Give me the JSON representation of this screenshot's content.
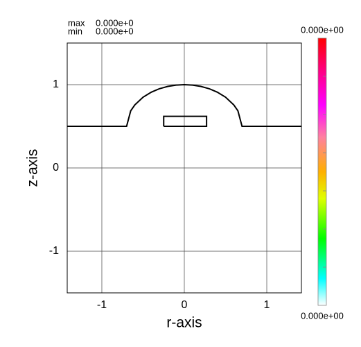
{
  "chart_data": {
    "type": "line",
    "x_label": "r-axis",
    "y_label": "z-axis",
    "annotations": {
      "max_label": "max",
      "max_value": "0.000e+0",
      "min_label": "min",
      "min_value": "0.000e+0"
    },
    "colorbar": {
      "top_label": "0.000e+00",
      "bottom_label": "0.000e+00"
    },
    "xlim": [
      -1.42,
      1.42
    ],
    "ylim": [
      -1.5,
      1.5
    ],
    "xticks": [
      -1,
      0,
      1
    ],
    "yticks": [
      -1,
      0,
      1
    ],
    "grid": true,
    "series": [
      {
        "color": "#000000",
        "x": [
          -1.42,
          -0.7,
          -0.65,
          -0.6,
          -0.5,
          -0.4,
          -0.3,
          -0.2,
          -0.1,
          0,
          0.1,
          0.2,
          0.3,
          0.4,
          0.5,
          0.6,
          0.65,
          0.7,
          1.42
        ],
        "values": [
          0.5,
          0.5,
          0.686,
          0.757,
          0.85,
          0.91,
          0.952,
          0.979,
          0.995,
          1.0,
          0.995,
          0.979,
          0.952,
          0.91,
          0.85,
          0.757,
          0.686,
          0.5,
          0.5
        ]
      },
      {
        "color": "#000000",
        "x": [
          -0.25,
          0.27,
          0.27,
          -0.25,
          -0.25
        ],
        "values": [
          0.5,
          0.5,
          0.62,
          0.62,
          0.5
        ]
      }
    ]
  }
}
